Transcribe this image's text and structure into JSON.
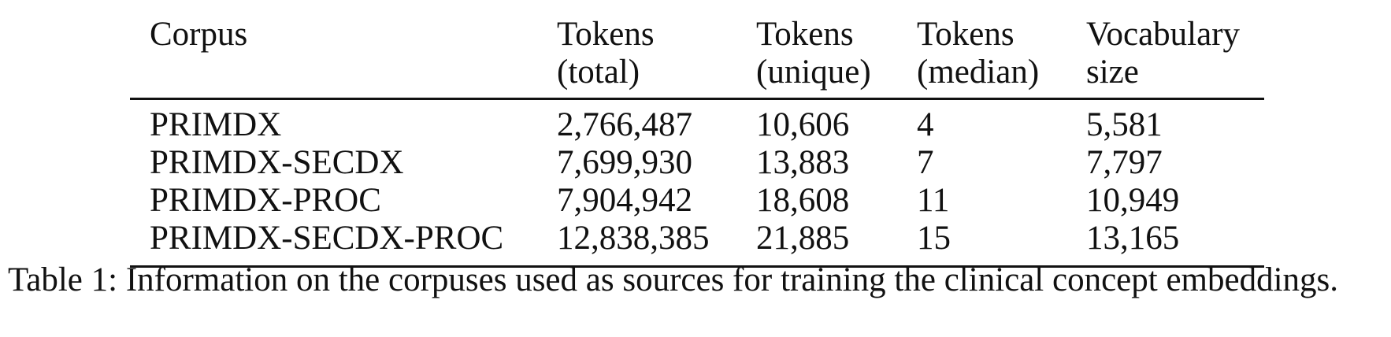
{
  "table": {
    "headers": [
      {
        "line1": "Corpus",
        "line2": ""
      },
      {
        "line1": "Tokens",
        "line2": "(total)"
      },
      {
        "line1": "Tokens",
        "line2": "(unique)"
      },
      {
        "line1": "Tokens",
        "line2": "(median)"
      },
      {
        "line1": "Vocabulary",
        "line2": "size"
      }
    ],
    "rows": [
      [
        "PRIMDX",
        "2,766,487",
        "10,606",
        "4",
        "5,581"
      ],
      [
        "PRIMDX-SECDX",
        "7,699,930",
        "13,883",
        "7",
        "7,797"
      ],
      [
        "PRIMDX-PROC",
        "7,904,942",
        "18,608",
        "11",
        "10,949"
      ],
      [
        "PRIMDX-SECDX-PROC",
        "12,838,385",
        "21,885",
        "15",
        "13,165"
      ]
    ]
  },
  "caption": "Table 1: Information on the corpuses used as sources for training the clinical concept embeddings."
}
